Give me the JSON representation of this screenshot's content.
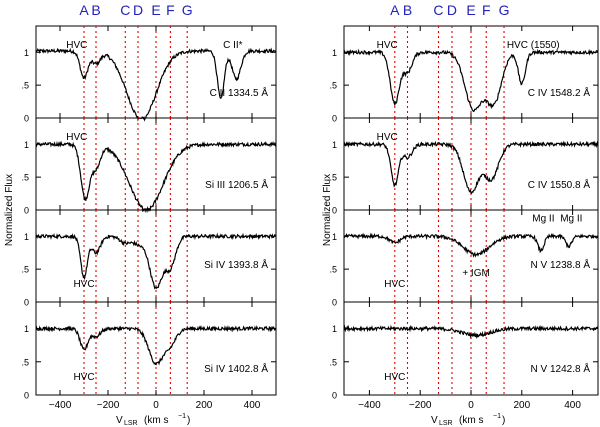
{
  "colors": {
    "marker": "#2222bb",
    "guide": "#e00000",
    "line": "#000000"
  },
  "markers": {
    "labels": [
      "A",
      "B",
      "C",
      "D",
      "E",
      "F",
      "G"
    ],
    "velocities": [
      -300,
      -250,
      -128,
      -75,
      0,
      60,
      130
    ]
  },
  "chart_data": {
    "type": "line",
    "x_axis": {
      "label_main": "V",
      "label_sub": "LSR",
      "label_units": "(km s",
      "label_exp": "−1",
      "label_close": ")",
      "range": [
        -500,
        500
      ],
      "ticks": [
        -400,
        -200,
        0,
        200,
        400
      ],
      "tick_labels": [
        "−400",
        "−200",
        "0",
        "200",
        "400"
      ]
    },
    "y_axis": {
      "label": "Normalized Flux",
      "range": [
        0,
        1.4
      ],
      "ticks": [
        0,
        0.5,
        1
      ],
      "tick_labels": [
        "0",
        ".5",
        "1"
      ]
    },
    "panels": [
      {
        "column": 0,
        "row": 0,
        "line_label": "C II 1334.5 Å",
        "annotations": [
          {
            "text": "HVC",
            "v": -330,
            "f": 1.12
          },
          {
            "text": "C II*",
            "v": 320,
            "f": 1.12
          }
        ],
        "continuum": 1.02,
        "features": [
          {
            "v": -300,
            "depth": 0.4,
            "sigma": 16
          },
          {
            "v": -250,
            "depth": 0.18,
            "sigma": 18
          },
          {
            "v": -60,
            "depth": 1.02,
            "sigma": 62
          },
          {
            "v": 270,
            "depth": 0.72,
            "sigma": 14
          },
          {
            "v": 335,
            "depth": 0.42,
            "sigma": 18
          }
        ],
        "saturate": true
      },
      {
        "column": 0,
        "row": 1,
        "line_label": "Si III 1206.5 Å",
        "annotations": [
          {
            "text": "HVC",
            "v": -330,
            "f": 1.12
          }
        ],
        "continuum": 1.0,
        "features": [
          {
            "v": -295,
            "depth": 0.82,
            "sigma": 18
          },
          {
            "v": -250,
            "depth": 0.35,
            "sigma": 18
          },
          {
            "v": -40,
            "depth": 1.0,
            "sigma": 70
          }
        ],
        "saturate": true
      },
      {
        "column": 0,
        "row": 2,
        "line_label": "Si IV 1393.8 Å",
        "annotations": [
          {
            "text": "HVC",
            "v": -300,
            "f": 0.28
          }
        ],
        "continuum": 1.0,
        "features": [
          {
            "v": -300,
            "depth": 0.62,
            "sigma": 14
          },
          {
            "v": -250,
            "depth": 0.25,
            "sigma": 18
          },
          {
            "v": -128,
            "depth": 0.1,
            "sigma": 22
          },
          {
            "v": 0,
            "depth": 0.78,
            "sigma": 26
          },
          {
            "v": 60,
            "depth": 0.45,
            "sigma": 22
          },
          {
            "v": -70,
            "depth": 0.12,
            "sigma": 24
          }
        ],
        "saturate": false
      },
      {
        "column": 0,
        "row": 3,
        "line_label": "Si IV 1402.8 Å",
        "annotations": [
          {
            "text": "HVC",
            "v": -300,
            "f": 0.28
          }
        ],
        "continuum": 1.0,
        "features": [
          {
            "v": -300,
            "depth": 0.32,
            "sigma": 16
          },
          {
            "v": -250,
            "depth": 0.12,
            "sigma": 18
          },
          {
            "v": 0,
            "depth": 0.52,
            "sigma": 30
          },
          {
            "v": 60,
            "depth": 0.22,
            "sigma": 24
          }
        ],
        "saturate": false
      },
      {
        "column": 1,
        "row": 0,
        "line_label": "C IV 1548.2 Å",
        "annotations": [
          {
            "text": "HVC",
            "v": -330,
            "f": 1.12
          },
          {
            "text": "HVC (1550)",
            "v": 245,
            "f": 1.12
          }
        ],
        "continuum": 1.0,
        "features": [
          {
            "v": -300,
            "depth": 0.78,
            "sigma": 18
          },
          {
            "v": -250,
            "depth": 0.3,
            "sigma": 18
          },
          {
            "v": 10,
            "depth": 0.86,
            "sigma": 34
          },
          {
            "v": 90,
            "depth": 0.75,
            "sigma": 30
          },
          {
            "v": 200,
            "depth": 0.48,
            "sigma": 14
          }
        ],
        "saturate": false
      },
      {
        "column": 1,
        "row": 1,
        "line_label": "C IV 1550.8 Å",
        "annotations": [
          {
            "text": "HVC",
            "v": -330,
            "f": 1.12
          }
        ],
        "continuum": 1.0,
        "features": [
          {
            "v": -300,
            "depth": 0.62,
            "sigma": 15
          },
          {
            "v": -250,
            "depth": 0.2,
            "sigma": 18
          },
          {
            "v": 0,
            "depth": 0.72,
            "sigma": 30
          },
          {
            "v": 80,
            "depth": 0.52,
            "sigma": 28
          }
        ],
        "saturate": false
      },
      {
        "column": 1,
        "row": 2,
        "line_label": "N V 1238.8 Å",
        "annotations": [
          {
            "text": "HVC",
            "v": -300,
            "f": 0.28
          },
          {
            "text": "+ IGM",
            "v": 20,
            "f": 0.45
          },
          {
            "text": "Mg II",
            "v": 285,
            "f": 1.28
          },
          {
            "text": "Mg II",
            "v": 395,
            "f": 1.28
          }
        ],
        "continuum": 1.0,
        "features": [
          {
            "v": -300,
            "depth": 0.1,
            "sigma": 20
          },
          {
            "v": 20,
            "depth": 0.28,
            "sigma": 50
          },
          {
            "v": 275,
            "depth": 0.22,
            "sigma": 12
          },
          {
            "v": 385,
            "depth": 0.15,
            "sigma": 12
          }
        ],
        "saturate": false
      },
      {
        "column": 1,
        "row": 3,
        "line_label": "N V 1242.8 Å",
        "annotations": [
          {
            "text": "HVC",
            "v": -300,
            "f": 0.28
          }
        ],
        "continuum": 1.0,
        "features": [
          {
            "v": 20,
            "depth": 0.1,
            "sigma": 55
          }
        ],
        "saturate": false
      }
    ]
  }
}
